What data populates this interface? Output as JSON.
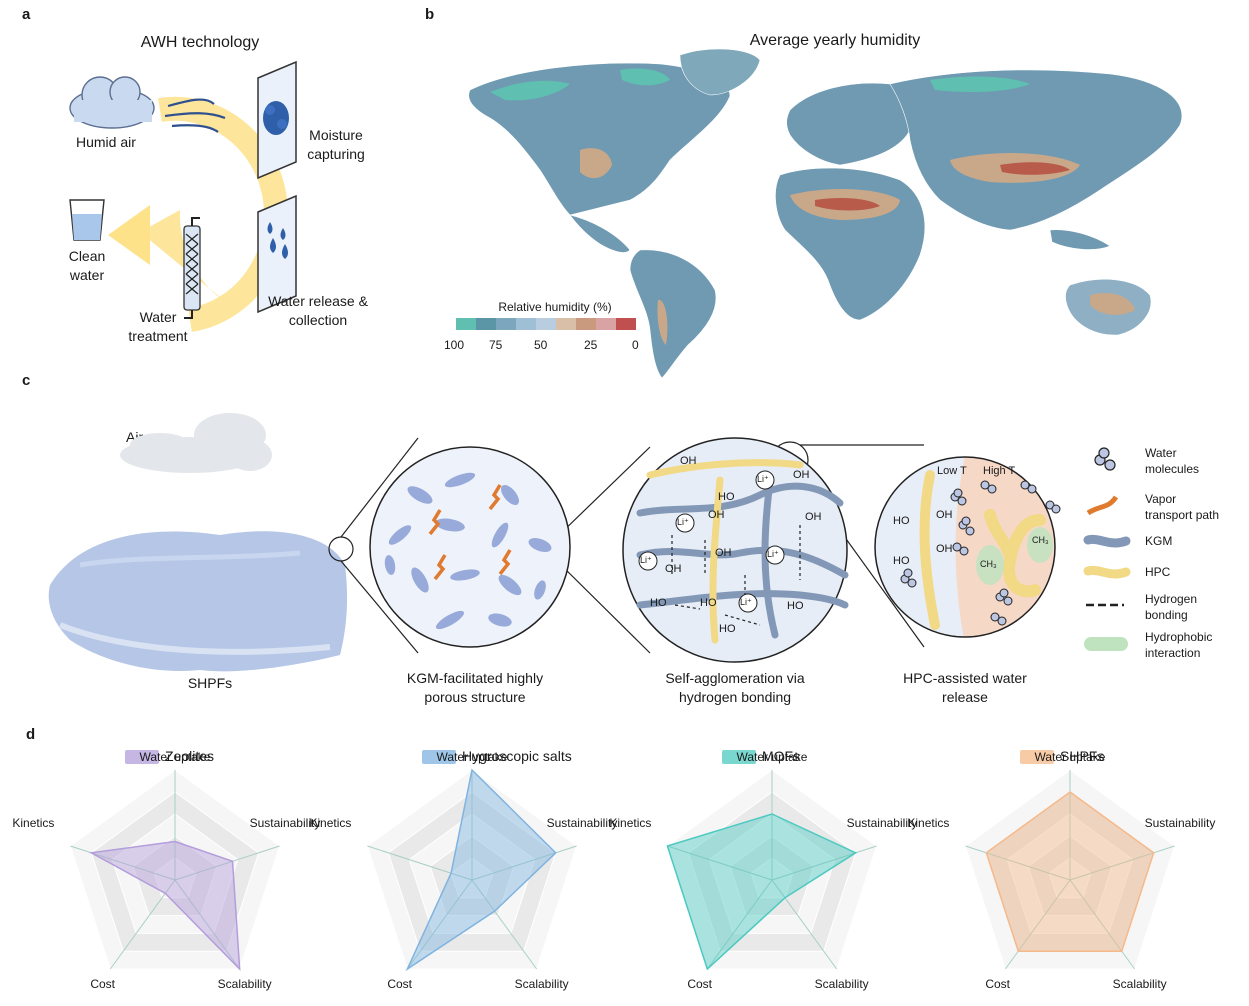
{
  "panels": {
    "a": "a",
    "b": "b",
    "c": "c",
    "d": "d"
  },
  "panel_a": {
    "title": "AWH technology",
    "humid_air": "Humid air",
    "moisture_capturing": [
      "Moisture",
      "capturing"
    ],
    "water_release": [
      "Water release &",
      "collection"
    ],
    "water_treatment": [
      "Water",
      "treatment"
    ],
    "clean_water": [
      "Clean",
      "water"
    ]
  },
  "panel_b": {
    "title": "Average yearly humidity",
    "legend_title": "Relative humidity (%)",
    "legend_colors": [
      "#5fbfb0",
      "#5a96a6",
      "#7ba6bd",
      "#9fbfd6",
      "#b9cde0",
      "#d9bfa8",
      "#c99a7e",
      "#d9a3a3",
      "#c05050"
    ],
    "legend_ticks": [
      "100",
      "75",
      "50",
      "25",
      "0"
    ]
  },
  "panel_c": {
    "air": "Air",
    "shpfs": "SHPFs",
    "caption1": [
      "KGM-facilitated highly",
      "porous structure"
    ],
    "caption2": [
      "Self-agglomeration via",
      "hydrogen bonding"
    ],
    "caption3": [
      "HPC-assisted water",
      "release"
    ],
    "low_t": "Low T",
    "high_t": "High T",
    "oh": "OH",
    "ho": "HO",
    "li": "Li⁺",
    "ch3": "CH₃",
    "legend": [
      [
        "Water",
        "molecules"
      ],
      [
        "Vapor",
        "transport path"
      ],
      [
        "KGM"
      ],
      [
        "HPC"
      ],
      [
        "Hydrogen",
        "bonding"
      ],
      [
        "Hydrophobic",
        "interaction"
      ]
    ]
  },
  "panel_d": {
    "axes": [
      "Water uptake",
      "Sustainability",
      "Scalability",
      "Cost",
      "Kinetics"
    ],
    "materials": [
      {
        "name": "Zeolites",
        "color": "#b39ddb",
        "values": [
          0.35,
          0.55,
          1.0,
          0.15,
          0.8
        ]
      },
      {
        "name": "Hygroscopic salts",
        "color": "#7fb3e0",
        "values": [
          1.0,
          0.8,
          0.35,
          1.0,
          0.2
        ]
      },
      {
        "name": "MOFs",
        "color": "#4cc9c0",
        "values": [
          0.6,
          0.8,
          0.2,
          1.0,
          1.0
        ]
      },
      {
        "name": "SHPFs",
        "color": "#f5b98a",
        "values": [
          0.8,
          0.8,
          0.8,
          0.8,
          0.8
        ]
      }
    ]
  }
}
